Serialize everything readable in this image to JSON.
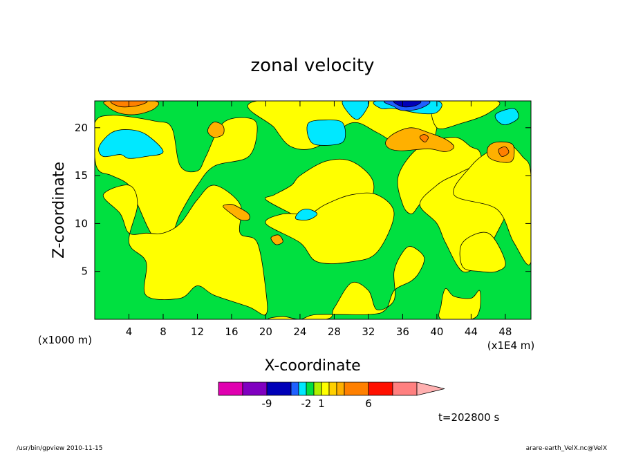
{
  "chart_data": {
    "type": "heatmap",
    "title": "zonal velocity",
    "xlabel": "X-coordinate",
    "ylabel": "Z-coordinate",
    "x_unit_label": "(x1E4 m)",
    "y_unit_label": "(x1000 m)",
    "xlim": [
      0,
      51
    ],
    "ylim": [
      0,
      22.8
    ],
    "x_ticks": [
      4,
      8,
      12,
      16,
      20,
      24,
      28,
      32,
      36,
      40,
      44,
      48
    ],
    "y_ticks": [
      5,
      10,
      15,
      20
    ],
    "timestamp": "t=202800 s",
    "footer_left": "/usr/bin/gpview   2010-11-15",
    "footer_right": "arare-earth_VelX.nc@VelX",
    "colorbar": {
      "colors": [
        "#e000b0",
        "#8000c0",
        "#0000b8",
        "#2060ff",
        "#00e8ff",
        "#00e040",
        "#b0f000",
        "#ffff00",
        "#ffd000",
        "#ffb000",
        "#ff8000",
        "#ff1000",
        "#ff8080",
        "#ffb0b0"
      ],
      "tick_labels": [
        {
          "label": "-9",
          "between": [
            1,
            2
          ]
        },
        {
          "label": "-2",
          "between": [
            4,
            5
          ]
        },
        {
          "label": "1",
          "between": [
            6,
            7
          ]
        },
        {
          "label": "6",
          "between": [
            10,
            11
          ]
        }
      ]
    },
    "contour_levels": [
      -9,
      -2,
      1,
      6
    ],
    "regions": [
      {
        "level": "green",
        "color": "#00e040",
        "shape": [
          [
            0,
            22.8
          ],
          [
            51,
            22.8
          ],
          [
            51,
            0
          ],
          [
            0,
            0
          ]
        ]
      },
      {
        "level": "yellow",
        "color": "#ffff00",
        "shape": [
          [
            0,
            20.5
          ],
          [
            2,
            21.3
          ],
          [
            7,
            20.7
          ],
          [
            9,
            20
          ],
          [
            10,
            16
          ],
          [
            12,
            15.5
          ],
          [
            13,
            17
          ],
          [
            15,
            20.5
          ],
          [
            18,
            21
          ],
          [
            19,
            20
          ],
          [
            18,
            17
          ],
          [
            14,
            16
          ],
          [
            12,
            14
          ],
          [
            10,
            11
          ],
          [
            9,
            9
          ],
          [
            7,
            8.5
          ],
          [
            5,
            12
          ],
          [
            4,
            14
          ],
          [
            2,
            15
          ],
          [
            0.5,
            15.5
          ],
          [
            0,
            17
          ]
        ]
      },
      {
        "level": "yellow",
        "color": "#ffff00",
        "shape": [
          [
            1,
            13
          ],
          [
            4,
            14
          ],
          [
            5,
            12
          ],
          [
            4,
            8
          ],
          [
            6,
            6
          ],
          [
            6,
            2.5
          ],
          [
            10,
            2.2
          ],
          [
            12,
            3.5
          ],
          [
            14,
            2.5
          ],
          [
            18,
            1.3
          ],
          [
            20,
            0.5
          ],
          [
            20,
            3
          ],
          [
            19,
            8
          ],
          [
            17,
            9
          ],
          [
            17,
            12
          ],
          [
            14,
            14
          ],
          [
            12,
            12.5
          ],
          [
            10,
            10
          ],
          [
            8,
            9
          ],
          [
            6,
            9
          ],
          [
            4,
            9
          ],
          [
            3,
            11
          ]
        ]
      },
      {
        "level": "yellow",
        "color": "#ffff00",
        "shape": [
          [
            20.5,
            0
          ],
          [
            27,
            0
          ],
          [
            28,
            1.2
          ],
          [
            30,
            3.8
          ],
          [
            32,
            3
          ],
          [
            33,
            1
          ],
          [
            35,
            2
          ],
          [
            35,
            5
          ],
          [
            36,
            7
          ],
          [
            37,
            7.6
          ],
          [
            38.5,
            6.5
          ],
          [
            38,
            5
          ],
          [
            37,
            4
          ],
          [
            35,
            3
          ],
          [
            34,
            1
          ],
          [
            32,
            0.5
          ],
          [
            26,
            0.5
          ],
          [
            24,
            0
          ],
          [
            22,
            0.3
          ]
        ]
      },
      {
        "level": "yellow",
        "color": "#ffff00",
        "shape": [
          [
            20,
            12.5
          ],
          [
            23,
            11
          ],
          [
            26,
            9.5
          ],
          [
            29,
            9
          ],
          [
            32,
            12
          ],
          [
            32.5,
            14.5
          ],
          [
            30,
            16.5
          ],
          [
            27,
            16.5
          ],
          [
            24,
            15
          ],
          [
            23,
            14
          ],
          [
            21,
            13
          ]
        ]
      },
      {
        "level": "yellow",
        "color": "#ffff00",
        "shape": [
          [
            20,
            10
          ],
          [
            24,
            8
          ],
          [
            26,
            6
          ],
          [
            30,
            6
          ],
          [
            33,
            7
          ],
          [
            35,
            11
          ],
          [
            33,
            13
          ],
          [
            30,
            13
          ],
          [
            27,
            12
          ],
          [
            25,
            11
          ],
          [
            22,
            11
          ]
        ]
      },
      {
        "level": "yellow",
        "color": "#ffff00",
        "shape": [
          [
            19,
            22.8
          ],
          [
            40,
            22.8
          ],
          [
            40,
            20
          ],
          [
            39,
            18
          ],
          [
            36,
            18
          ],
          [
            33,
            19.5
          ],
          [
            30,
            20.5
          ],
          [
            26,
            18
          ],
          [
            23,
            18
          ],
          [
            21,
            20
          ]
        ]
      },
      {
        "level": "yellow",
        "color": "#ffff00",
        "shape": [
          [
            35.5,
            15
          ],
          [
            38,
            18
          ],
          [
            42,
            19
          ],
          [
            44,
            18
          ],
          [
            45,
            17.5
          ],
          [
            45,
            16
          ],
          [
            42,
            15
          ],
          [
            40,
            14
          ],
          [
            38,
            12
          ],
          [
            37,
            11
          ],
          [
            36,
            12
          ]
        ]
      },
      {
        "level": "yellow",
        "color": "#ffff00",
        "shape": [
          [
            38,
            12
          ],
          [
            40,
            14
          ],
          [
            42,
            15
          ],
          [
            45,
            16
          ],
          [
            48,
            15
          ],
          [
            49,
            13
          ],
          [
            47,
            9
          ],
          [
            45,
            6
          ],
          [
            43,
            5
          ],
          [
            41,
            8
          ],
          [
            40,
            10
          ]
        ]
      },
      {
        "level": "yellow",
        "color": "#ffff00",
        "shape": [
          [
            40,
            22.8
          ],
          [
            47,
            22.8
          ],
          [
            46,
            21.5
          ],
          [
            43,
            20.5
          ],
          [
            40,
            20
          ]
        ]
      },
      {
        "level": "yellow",
        "color": "#ffff00",
        "shape": [
          [
            42,
            13
          ],
          [
            47,
            11.5
          ],
          [
            49,
            8
          ],
          [
            51,
            6
          ],
          [
            51,
            15
          ],
          [
            50,
            17
          ],
          [
            48,
            18.5
          ],
          [
            46,
            17.5
          ],
          [
            44,
            16
          ]
        ]
      },
      {
        "level": "yellow",
        "color": "#ffff00",
        "shape": [
          [
            41,
            3.2
          ],
          [
            42,
            2.4
          ],
          [
            44,
            2.2
          ],
          [
            45,
            3
          ],
          [
            45,
            1
          ],
          [
            44,
            0
          ],
          [
            40.5,
            0
          ],
          [
            40.5,
            1.5
          ]
        ]
      },
      {
        "level": "yellow",
        "color": "#ffff00",
        "shape": [
          [
            43,
            5.5
          ],
          [
            45,
            5
          ],
          [
            47,
            5
          ],
          [
            48,
            6
          ],
          [
            46,
            9
          ],
          [
            43,
            8
          ]
        ]
      },
      {
        "level": "orange",
        "color": "#ffb000",
        "shape": [
          [
            1.5,
            22.8
          ],
          [
            7,
            22.8
          ],
          [
            7,
            22
          ],
          [
            5,
            21.4
          ],
          [
            3,
            21.5
          ],
          [
            1.5,
            22.2
          ]
        ]
      },
      {
        "level": "orange",
        "color": "#ffb000",
        "shape": [
          [
            13.3,
            20
          ],
          [
            14,
            20.6
          ],
          [
            15,
            20.2
          ],
          [
            15,
            19.3
          ],
          [
            14,
            19
          ],
          [
            13.3,
            19.4
          ]
        ]
      },
      {
        "level": "orange",
        "color": "#ffb000",
        "shape": [
          [
            15,
            11.8
          ],
          [
            16,
            11
          ],
          [
            17,
            10.4
          ],
          [
            18,
            10.4
          ],
          [
            18,
            11
          ],
          [
            17,
            11.6
          ],
          [
            16,
            12
          ]
        ]
      },
      {
        "level": "orange",
        "color": "#ffb000",
        "shape": [
          [
            34,
            18.5
          ],
          [
            35,
            19.4
          ],
          [
            37,
            20
          ],
          [
            39,
            19.5
          ],
          [
            41,
            18.8
          ],
          [
            42,
            18
          ],
          [
            41,
            17.5
          ],
          [
            39,
            17.8
          ],
          [
            36,
            17.6
          ],
          [
            34.5,
            17.8
          ]
        ]
      },
      {
        "level": "orange",
        "color": "#ffb000",
        "shape": [
          [
            46,
            18
          ],
          [
            47,
            18.5
          ],
          [
            48.8,
            18.3
          ],
          [
            49,
            17
          ],
          [
            48.5,
            16.4
          ],
          [
            47,
            16.5
          ],
          [
            46,
            17
          ]
        ]
      },
      {
        "level": "orange",
        "color": "#ffb000",
        "shape": [
          [
            20.6,
            8.5
          ],
          [
            21.5,
            8.8
          ],
          [
            22,
            8.1
          ],
          [
            21.2,
            7.8
          ]
        ]
      },
      {
        "level": "dark-orange",
        "color": "#ff8000",
        "shape": [
          [
            38,
            19
          ],
          [
            38.5,
            19.3
          ],
          [
            39,
            19
          ],
          [
            38.6,
            18.5
          ]
        ]
      },
      {
        "level": "dark-orange",
        "color": "#ff8000",
        "shape": [
          [
            47.2,
            17.7
          ],
          [
            48,
            18
          ],
          [
            48.4,
            17.4
          ],
          [
            47.6,
            17
          ]
        ]
      },
      {
        "level": "dark-orange",
        "color": "#ff8000",
        "shape": [
          [
            2,
            22.8
          ],
          [
            6,
            22.8
          ],
          [
            5,
            22.3
          ],
          [
            3,
            22.2
          ]
        ]
      },
      {
        "level": "cyan",
        "color": "#00e8ff",
        "shape": [
          [
            0.5,
            18
          ],
          [
            2,
            19.5
          ],
          [
            4,
            19.8
          ],
          [
            6,
            19.3
          ],
          [
            8,
            17.5
          ],
          [
            6,
            17
          ],
          [
            4,
            16.8
          ],
          [
            3,
            17.2
          ],
          [
            1,
            17
          ]
        ]
      },
      {
        "level": "cyan",
        "color": "#00e8ff",
        "shape": [
          [
            25,
            20.5
          ],
          [
            27,
            20.8
          ],
          [
            29,
            20.5
          ],
          [
            29,
            18.5
          ],
          [
            26,
            18.2
          ],
          [
            25,
            19
          ]
        ]
      },
      {
        "level": "cyan",
        "color": "#00e8ff",
        "shape": [
          [
            29,
            22.8
          ],
          [
            32,
            22.8
          ],
          [
            31,
            21
          ],
          [
            30,
            21.2
          ]
        ]
      },
      {
        "level": "cyan",
        "color": "#00e8ff",
        "shape": [
          [
            33,
            22.8
          ],
          [
            40,
            22.8
          ],
          [
            40,
            21.6
          ],
          [
            38,
            21.5
          ],
          [
            35,
            22
          ],
          [
            33.5,
            22
          ]
        ]
      },
      {
        "level": "cyan",
        "color": "#00e8ff",
        "shape": [
          [
            47,
            21.5
          ],
          [
            49,
            22
          ],
          [
            49.5,
            21
          ],
          [
            48,
            20.3
          ],
          [
            47,
            20.8
          ]
        ]
      },
      {
        "level": "cyan",
        "color": "#00e8ff",
        "shape": [
          [
            23.5,
            10.5
          ],
          [
            24,
            11.3
          ],
          [
            25,
            11.5
          ],
          [
            26,
            11
          ],
          [
            25,
            10.4
          ]
        ]
      },
      {
        "level": "blue",
        "color": "#2060ff",
        "shape": [
          [
            34,
            22.8
          ],
          [
            39,
            22.8
          ],
          [
            38,
            22
          ],
          [
            36,
            21.8
          ],
          [
            35,
            22.2
          ]
        ]
      },
      {
        "level": "dark-blue",
        "color": "#0000b8",
        "shape": [
          [
            35,
            22.8
          ],
          [
            38,
            22.8
          ],
          [
            37.5,
            22.3
          ],
          [
            36,
            22.2
          ]
        ]
      }
    ]
  }
}
